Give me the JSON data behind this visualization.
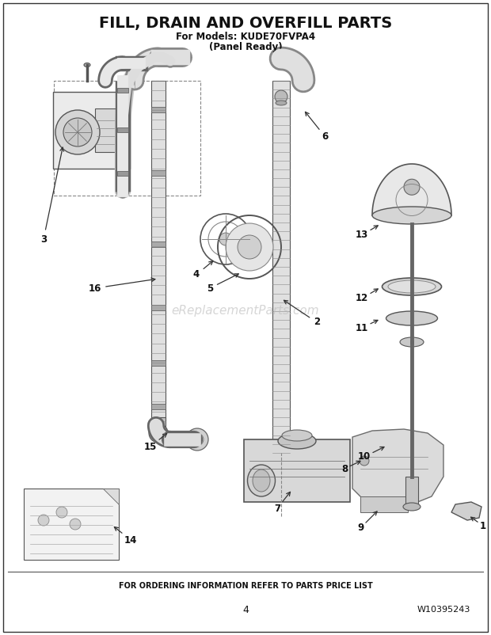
{
  "title": "FILL, DRAIN AND OVERFILL PARTS",
  "subtitle1": "For Models: KUDE70FVPA4",
  "subtitle2": "(Panel Ready)",
  "footer": "FOR ORDERING INFORMATION REFER TO PARTS PRICE LIST",
  "page_num": "4",
  "part_num": "W10395243",
  "bg_color": "#ffffff",
  "watermark": "eReplacementParts.com",
  "title_fontsize": 14,
  "subtitle_fontsize": 8.5,
  "label_fontsize": 8.5
}
